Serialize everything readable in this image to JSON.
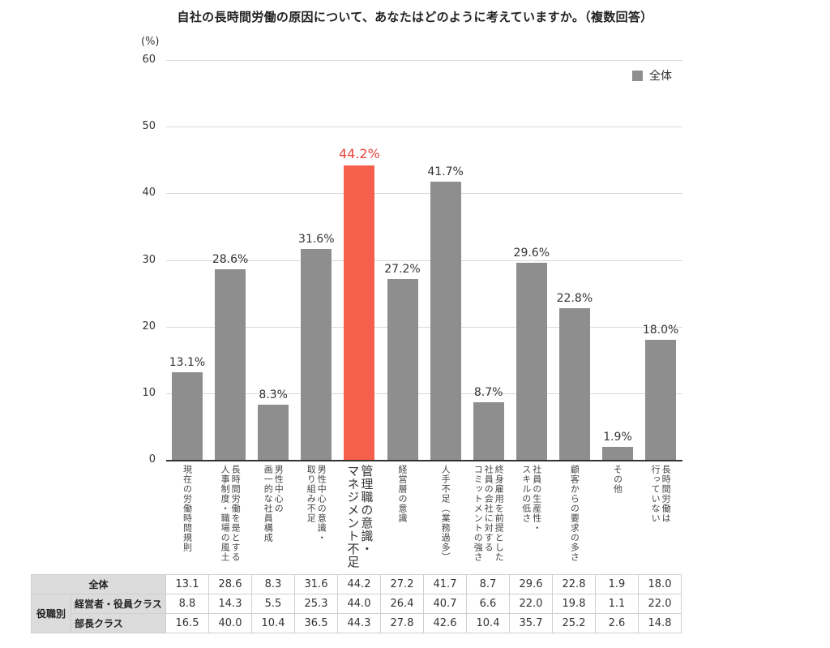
{
  "title": "自社の長時間労働の原因について、あなたはどのように考えていますか。（複数回答）",
  "y_unit": "(%)",
  "legend": {
    "label": "全体",
    "color": "#8e8e8e"
  },
  "y_ticks": [
    "0",
    "10",
    "20",
    "30",
    "40",
    "50",
    "60"
  ],
  "bars": [
    {
      "label": "13.1%",
      "category": "現在の労働時間規則"
    },
    {
      "label": "28.6%",
      "category": "長時間労働を是とする人事制度・職場の風土"
    },
    {
      "label": "8.3%",
      "category": "男性中心の画一的な社員構成"
    },
    {
      "label": "31.6%",
      "category": "男性中心の意識・取り組み不足"
    },
    {
      "label": "44.2%",
      "category": "管理職の意識・マネジメント不足"
    },
    {
      "label": "27.2%",
      "category": "経営層の意識"
    },
    {
      "label": "41.7%",
      "category": "人手不足（業務過多）"
    },
    {
      "label": "8.7%",
      "category": "終身雇用を前提とした社員の会社に対するコミットメントの強さ"
    },
    {
      "label": "29.6%",
      "category": "社員の生産性・スキルの低さ"
    },
    {
      "label": "22.8%",
      "category": "顧客からの要求の多さ"
    },
    {
      "label": "1.9%",
      "category": "その他"
    },
    {
      "label": "18.0%",
      "category": "長時間労働は行っていない"
    }
  ],
  "category_lines": [
    [
      "現在の労働時間規則"
    ],
    [
      "長時間労働を是とする",
      "人事制度・職場の風土"
    ],
    [
      "男性中心の",
      "画一的な社員構成"
    ],
    [
      "男性中心の意識・",
      "取り組み不足"
    ],
    [
      "管理職の意識・",
      "マネジメント不足"
    ],
    [
      "経営層の意識"
    ],
    [
      "人手不足（業務過多）"
    ],
    [
      "終身雇用を前提とした",
      "社員の会社に対する",
      "コミットメントの強さ"
    ],
    [
      "社員の生産性・",
      "スキルの低さ"
    ],
    [
      "顧客からの要求の多さ"
    ],
    [
      "その他"
    ],
    [
      "長時間労働は",
      "行っていない"
    ]
  ],
  "table": {
    "row_all_label": "全体",
    "group_label": "役職別",
    "rows": [
      {
        "label": "全体",
        "values": [
          "13.1",
          "28.6",
          "8.3",
          "31.6",
          "44.2",
          "27.2",
          "41.7",
          "8.7",
          "29.6",
          "22.8",
          "1.9",
          "18.0"
        ]
      },
      {
        "label": "経営者・役員クラス",
        "values": [
          "8.8",
          "14.3",
          "5.5",
          "25.3",
          "44.0",
          "26.4",
          "40.7",
          "6.6",
          "22.0",
          "19.8",
          "1.1",
          "22.0"
        ]
      },
      {
        "label": "部長クラス",
        "values": [
          "16.5",
          "40.0",
          "10.4",
          "36.5",
          "44.3",
          "27.8",
          "42.6",
          "10.4",
          "35.7",
          "25.2",
          "2.6",
          "14.8"
        ]
      }
    ]
  },
  "colors": {
    "bar": "#8e8e8e",
    "highlight": "#f4604c",
    "highlight_text": "#e8443a"
  },
  "chart_data": {
    "type": "bar",
    "title": "自社の長時間労働の原因について、あなたはどのように考えていますか。（複数回答）",
    "xlabel": "",
    "ylabel": "(%)",
    "ylim": [
      0,
      60
    ],
    "yticks": [
      0,
      10,
      20,
      30,
      40,
      50,
      60
    ],
    "grid": true,
    "legend": [
      "全体"
    ],
    "legend_position": "top-right",
    "highlight_index": 4,
    "categories": [
      "現在の労働時間規則",
      "長時間労働を是とする人事制度・職場の風土",
      "男性中心の画一的な社員構成",
      "男性中心の意識・取り組み不足",
      "管理職の意識・マネジメント不足",
      "経営層の意識",
      "人手不足（業務過多）",
      "終身雇用を前提とした社員の会社に対するコミットメントの強さ",
      "社員の生産性・スキルの低さ",
      "顧客からの要求の多さ",
      "その他",
      "長時間労働は行っていない"
    ],
    "series": [
      {
        "name": "全体",
        "values": [
          13.1,
          28.6,
          8.3,
          31.6,
          44.2,
          27.2,
          41.7,
          8.7,
          29.6,
          22.8,
          1.9,
          18.0
        ]
      },
      {
        "name": "経営者・役員クラス",
        "values": [
          8.8,
          14.3,
          5.5,
          25.3,
          44.0,
          26.4,
          40.7,
          6.6,
          22.0,
          19.8,
          1.1,
          22.0
        ],
        "shown_as": "table"
      },
      {
        "name": "部長クラス",
        "values": [
          16.5,
          40.0,
          10.4,
          36.5,
          44.3,
          27.8,
          42.6,
          10.4,
          35.7,
          25.2,
          2.6,
          14.8
        ],
        "shown_as": "table"
      }
    ]
  }
}
